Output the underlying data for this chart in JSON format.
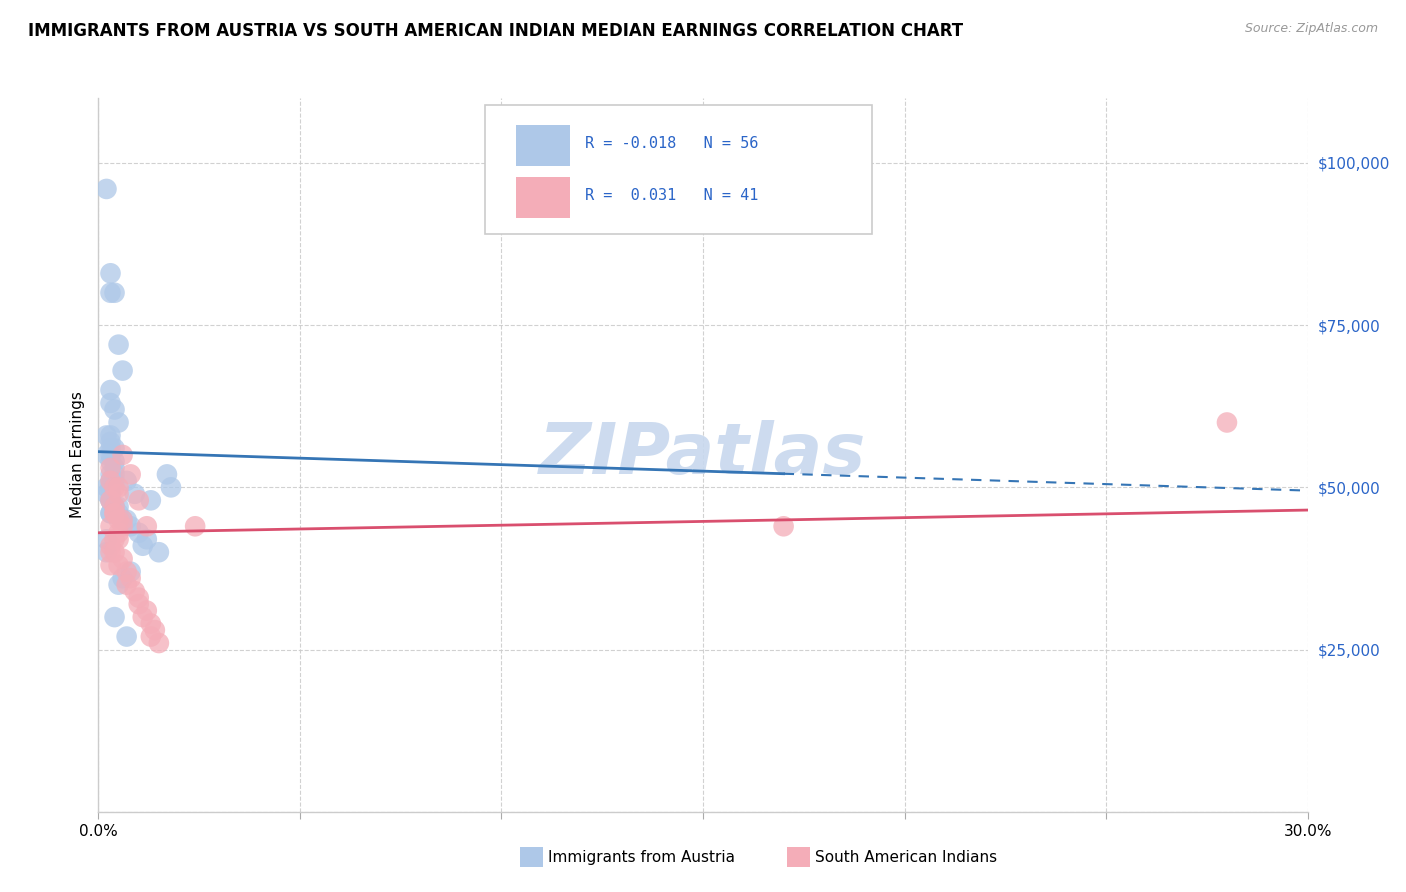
{
  "title": "IMMIGRANTS FROM AUSTRIA VS SOUTH AMERICAN INDIAN MEDIAN EARNINGS CORRELATION CHART",
  "source": "Source: ZipAtlas.com",
  "ylabel": "Median Earnings",
  "xmin": 0.0,
  "xmax": 0.3,
  "ymin": 0,
  "ymax": 110000,
  "legend_labels": [
    "Immigrants from Austria",
    "South American Indians"
  ],
  "R_blue": -0.018,
  "N_blue": 56,
  "R_pink": 0.031,
  "N_pink": 41,
  "blue_color": "#aec8e8",
  "pink_color": "#f4adb8",
  "blue_line_color": "#3575b5",
  "pink_line_color": "#d94f6e",
  "watermark_color": "#c8d8ee",
  "blue_line_x": [
    0.0,
    0.3
  ],
  "blue_line_y": [
    55500,
    49500
  ],
  "pink_line_x": [
    0.0,
    0.3
  ],
  "pink_line_y": [
    43000,
    46500
  ],
  "blue_x": [
    0.002,
    0.003,
    0.003,
    0.004,
    0.005,
    0.006,
    0.003,
    0.003,
    0.004,
    0.005,
    0.002,
    0.003,
    0.003,
    0.004,
    0.003,
    0.002,
    0.003,
    0.003,
    0.004,
    0.004,
    0.003,
    0.004,
    0.004,
    0.003,
    0.002,
    0.003,
    0.003,
    0.002,
    0.003,
    0.003,
    0.003,
    0.004,
    0.004,
    0.003,
    0.005,
    0.006,
    0.007,
    0.008,
    0.01,
    0.012,
    0.011,
    0.015,
    0.017,
    0.018,
    0.013,
    0.008,
    0.006,
    0.005,
    0.004,
    0.007,
    0.007,
    0.009,
    0.005,
    0.003,
    0.002,
    0.002
  ],
  "blue_y": [
    96000,
    83000,
    80000,
    80000,
    72000,
    68000,
    65000,
    63000,
    62000,
    60000,
    58000,
    58000,
    57000,
    56000,
    56000,
    55000,
    55000,
    54000,
    54000,
    53000,
    52000,
    52000,
    51000,
    51000,
    50000,
    50000,
    50000,
    49000,
    49000,
    48000,
    48000,
    47000,
    47000,
    46000,
    46000,
    45000,
    45000,
    44000,
    43000,
    42000,
    41000,
    40000,
    52000,
    50000,
    48000,
    37000,
    36000,
    35000,
    30000,
    27000,
    51000,
    49000,
    47000,
    46000,
    42000,
    40000
  ],
  "pink_x": [
    0.003,
    0.003,
    0.004,
    0.005,
    0.003,
    0.004,
    0.004,
    0.005,
    0.006,
    0.005,
    0.004,
    0.003,
    0.003,
    0.006,
    0.005,
    0.007,
    0.008,
    0.007,
    0.009,
    0.01,
    0.01,
    0.012,
    0.011,
    0.013,
    0.014,
    0.013,
    0.015,
    0.012,
    0.01,
    0.008,
    0.006,
    0.005,
    0.004,
    0.003,
    0.006,
    0.005,
    0.004,
    0.003,
    0.024,
    0.17,
    0.28
  ],
  "pink_y": [
    53000,
    51000,
    50000,
    49000,
    48000,
    47000,
    46000,
    45000,
    44000,
    43000,
    42000,
    41000,
    40000,
    39000,
    38000,
    37000,
    36000,
    35000,
    34000,
    33000,
    32000,
    31000,
    30000,
    29000,
    28000,
    27000,
    26000,
    44000,
    48000,
    52000,
    55000,
    50000,
    46000,
    44000,
    45000,
    42000,
    40000,
    38000,
    44000,
    44000,
    60000
  ]
}
